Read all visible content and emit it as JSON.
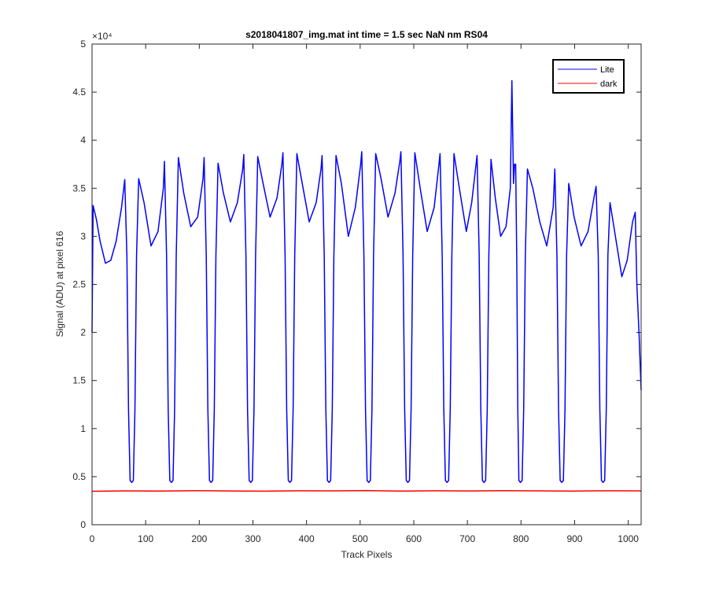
{
  "chart_data": {
    "type": "line",
    "title": "s2018041807_img.mat int time = 1.5 sec  NaN nm RS04",
    "x_label": "Track Pixels",
    "y_label": "Signal (ADU) at pixel 616",
    "y_multiplier": "×10⁴",
    "xlim": [
      0,
      1024
    ],
    "ylim": [
      0,
      50000
    ],
    "xticks": [
      0,
      100,
      200,
      300,
      400,
      500,
      600,
      700,
      800,
      900,
      1000
    ],
    "yticks": [
      0,
      {
        "value": 5000,
        "label": "0.5"
      },
      {
        "value": 10000,
        "label": "1"
      },
      {
        "value": 15000,
        "label": "1.5"
      },
      {
        "value": 20000,
        "label": "2"
      },
      {
        "value": 25000,
        "label": "2.5"
      },
      {
        "value": 30000,
        "label": "3"
      },
      {
        "value": 35000,
        "label": "3.5"
      },
      {
        "value": 40000,
        "label": "4"
      },
      {
        "value": 45000,
        "label": "4.5"
      },
      {
        "value": 50000,
        "label": "5"
      }
    ],
    "legend": "upper right",
    "series": [
      {
        "name": "Lite",
        "color": "#0000ff",
        "x": [
          0,
          2,
          8,
          15,
          25,
          35,
          45,
          55,
          61,
          65,
          68,
          71,
          74,
          77,
          80,
          83,
          87,
          97,
          110,
          123,
          133,
          135,
          139,
          142,
          145,
          148,
          151,
          154,
          157,
          161,
          171,
          184,
          197,
          207,
          209,
          213,
          216,
          219,
          222,
          225,
          228,
          231,
          235,
          245,
          258,
          271,
          281,
          283,
          287,
          290,
          293,
          296,
          299,
          302,
          305,
          309,
          319,
          332,
          345,
          354,
          356,
          360,
          363,
          366,
          369,
          372,
          375,
          378,
          382,
          392,
          405,
          418,
          427,
          429,
          433,
          436,
          439,
          442,
          445,
          448,
          451,
          455,
          465,
          478,
          491,
          501,
          503,
          507,
          510,
          513,
          516,
          519,
          522,
          525,
          529,
          539,
          552,
          565,
          574,
          576,
          580,
          583,
          586,
          589,
          592,
          595,
          598,
          602,
          612,
          625,
          638,
          647,
          649,
          653,
          656,
          659,
          662,
          665,
          668,
          671,
          675,
          685,
          698,
          708,
          718,
          722,
          725,
          728,
          731,
          734,
          737,
          740,
          744,
          752,
          762,
          772,
          780,
          783,
          786,
          788,
          790,
          792,
          794,
          796,
          799,
          802,
          805,
          808,
          812,
          822,
          835,
          848,
          860,
          863,
          867,
          870,
          873,
          876,
          879,
          882,
          885,
          889,
          899,
          912,
          925,
          936,
          940,
          944,
          947,
          950,
          953,
          956,
          959,
          962,
          966,
          976,
          988,
          998,
          1008,
          1013,
          1016,
          1020,
          1024
        ],
        "values": [
          20000,
          33200,
          31800,
          29500,
          27200,
          27500,
          29500,
          33000,
          35900,
          28000,
          12000,
          4600,
          4400,
          4600,
          12000,
          28000,
          36000,
          33500,
          29000,
          30500,
          35000,
          37800,
          28000,
          12000,
          4600,
          4400,
          4600,
          12000,
          28000,
          38200,
          34500,
          31000,
          32000,
          36000,
          38200,
          28000,
          12000,
          4600,
          4400,
          4600,
          12000,
          28000,
          37600,
          34500,
          31500,
          33500,
          37000,
          38500,
          28000,
          12000,
          4600,
          4400,
          4600,
          12000,
          28000,
          38300,
          35500,
          32000,
          34000,
          37500,
          38700,
          28000,
          12000,
          4600,
          4400,
          4600,
          12000,
          28000,
          38600,
          35500,
          31500,
          33500,
          37000,
          38400,
          28000,
          12000,
          4600,
          4400,
          4600,
          12000,
          28000,
          38400,
          35500,
          30000,
          33000,
          37500,
          38800,
          28000,
          12000,
          4600,
          4400,
          4600,
          12000,
          28000,
          38600,
          36000,
          32000,
          34500,
          37800,
          38800,
          28000,
          12000,
          4600,
          4400,
          4600,
          12000,
          28000,
          38700,
          35000,
          30500,
          33000,
          37500,
          38600,
          28000,
          12000,
          4600,
          4400,
          4600,
          12000,
          28000,
          38600,
          35000,
          30500,
          33500,
          38400,
          28000,
          12000,
          4600,
          4400,
          4600,
          12000,
          28000,
          38000,
          34000,
          30000,
          31000,
          35000,
          46200,
          35500,
          37500,
          37500,
          28000,
          12000,
          4600,
          4400,
          4600,
          12000,
          28000,
          37000,
          35000,
          31500,
          29000,
          33000,
          37000,
          28000,
          12000,
          4600,
          4400,
          4600,
          12000,
          28000,
          35500,
          32000,
          29000,
          30500,
          34000,
          35200,
          28000,
          12000,
          4600,
          4400,
          4600,
          12000,
          28000,
          33500,
          30000,
          25800,
          27500,
          31500,
          32500,
          25000,
          20000,
          14000
        ]
      },
      {
        "name": "dark",
        "color": "#ff0000",
        "x": [
          0,
          64,
          128,
          192,
          256,
          320,
          384,
          448,
          512,
          576,
          640,
          704,
          768,
          832,
          896,
          960,
          1024
        ],
        "values": [
          3480,
          3520,
          3500,
          3540,
          3510,
          3490,
          3530,
          3520,
          3550,
          3500,
          3530,
          3510,
          3540,
          3520,
          3500,
          3530,
          3520
        ]
      }
    ]
  }
}
